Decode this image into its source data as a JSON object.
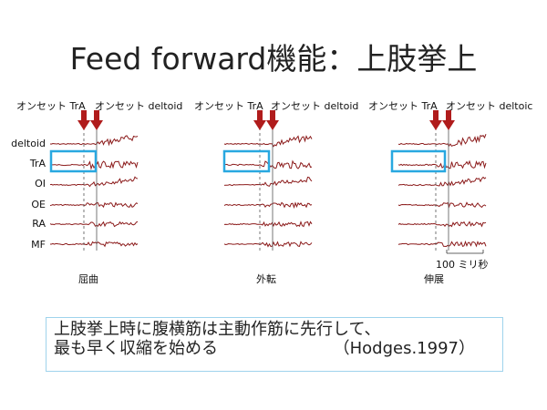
{
  "title": "Feed forward機能：上肢挙上",
  "onset_trA": "オンセット TrA",
  "onset_deltoid": "オンセット deltoid",
  "onset_deltoid_cut": "オンセット deltoic",
  "rows": [
    "deltoid",
    "TrA",
    "OI",
    "OE",
    "RA",
    "MF"
  ],
  "panels": [
    {
      "caption": "屈曲"
    },
    {
      "caption": "外転"
    },
    {
      "caption": "伸展"
    }
  ],
  "scale_label": "100 ミリ秒",
  "summary_line1": "上肢挙上時に腹横筋は主動作筋に先行して、",
  "summary_line2": "最も早く収縮を始める",
  "citation": "（Hodges.1997）",
  "colors": {
    "trace": "#8b1a1a",
    "arrow": "#b01c1c",
    "highlight": "#29a8e0",
    "textbox_border": "#9fd3ec"
  }
}
